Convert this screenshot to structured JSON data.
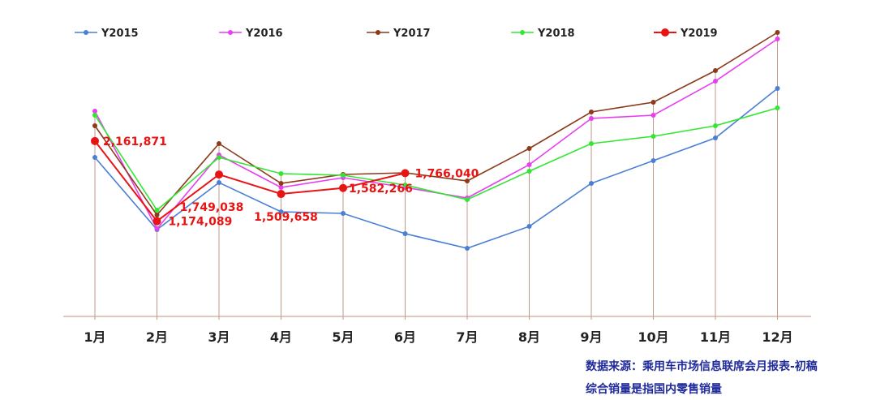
{
  "chart_data": {
    "type": "line",
    "categories": [
      "1月",
      "2月",
      "3月",
      "4月",
      "5月",
      "6月",
      "7月",
      "8月",
      "9月",
      "10月",
      "11月",
      "12月"
    ],
    "ylim": [
      0,
      3400000
    ],
    "grid": false,
    "legend_position": "top",
    "series": [
      {
        "name": "Y2015",
        "color": "#4a7fd6",
        "values": [
          1960000,
          1070000,
          1650000,
          1290000,
          1270000,
          1020000,
          840000,
          1110000,
          1640000,
          1920000,
          2200000,
          2810000
        ]
      },
      {
        "name": "Y2016",
        "color": "#e83ef0",
        "values": [
          2530000,
          1080000,
          1990000,
          1590000,
          1710000,
          1590000,
          1460000,
          1870000,
          2440000,
          2480000,
          2900000,
          3420000
        ]
      },
      {
        "name": "Y2017",
        "color": "#8b3a1a",
        "values": [
          2350000,
          1250000,
          2130000,
          1640000,
          1750000,
          1770000,
          1670000,
          2070000,
          2520000,
          2640000,
          3030000,
          3500000
        ]
      },
      {
        "name": "Y2018",
        "color": "#33e633",
        "values": [
          2480000,
          1310000,
          1960000,
          1760000,
          1740000,
          1620000,
          1440000,
          1790000,
          2130000,
          2220000,
          2350000,
          2570000
        ]
      },
      {
        "name": "Y2019",
        "color": "#e81414",
        "values": [
          2161871,
          1174089,
          1749038,
          1509658,
          1582266,
          1766040,
          null,
          null,
          null,
          null,
          null,
          null
        ]
      }
    ],
    "data_labels": [
      {
        "series": "Y2019",
        "index": 0,
        "text": "2,161,871"
      },
      {
        "series": "Y2019",
        "index": 1,
        "text": "1,174,089"
      },
      {
        "series": "Y2019",
        "index": 2,
        "text": "1,749,038"
      },
      {
        "series": "Y2019",
        "index": 3,
        "text": "1,509,658"
      },
      {
        "series": "Y2019",
        "index": 4,
        "text": "1,582,266"
      },
      {
        "series": "Y2019",
        "index": 5,
        "text": "1,766,040"
      }
    ]
  },
  "source_note": {
    "line1": "数据来源：乘用车市场信息联席会月报表-初稿",
    "line2": "综合销量是指国内零售销量"
  }
}
